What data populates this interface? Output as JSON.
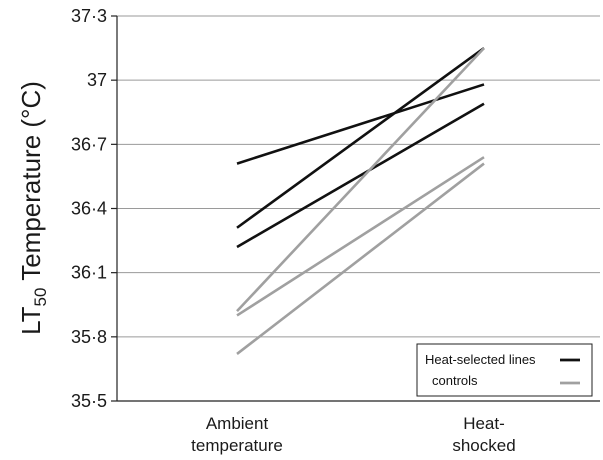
{
  "chart_data": {
    "type": "line",
    "categories": [
      "Ambient temperature",
      "Heat-shocked"
    ],
    "category_lines": [
      [
        "Ambient",
        "temperature"
      ],
      [
        "Heat-",
        "shocked"
      ]
    ],
    "ylabel": "LT",
    "ylabel_subscript": "50",
    "ylabel_suffix": " Temperature (°C)",
    "ylim": [
      35.5,
      37.3
    ],
    "yticks": [
      35.5,
      35.8,
      36.1,
      36.4,
      36.7,
      37.0,
      37.3
    ],
    "ytick_labels": [
      "35·5",
      "35·8",
      "36·1",
      "36·4",
      "36·7",
      "37",
      "37·3"
    ],
    "grid": true,
    "legend_position": "bottom-right",
    "groups": [
      {
        "name": "Heat-selected lines",
        "color": "#111111",
        "lines": [
          [
            36.61,
            36.98
          ],
          [
            36.31,
            37.15
          ],
          [
            36.22,
            36.89
          ]
        ]
      },
      {
        "name": "controls",
        "color": "#a0a0a0",
        "lines": [
          [
            35.92,
            37.15
          ],
          [
            35.9,
            36.64
          ],
          [
            35.72,
            36.61
          ]
        ]
      }
    ]
  }
}
